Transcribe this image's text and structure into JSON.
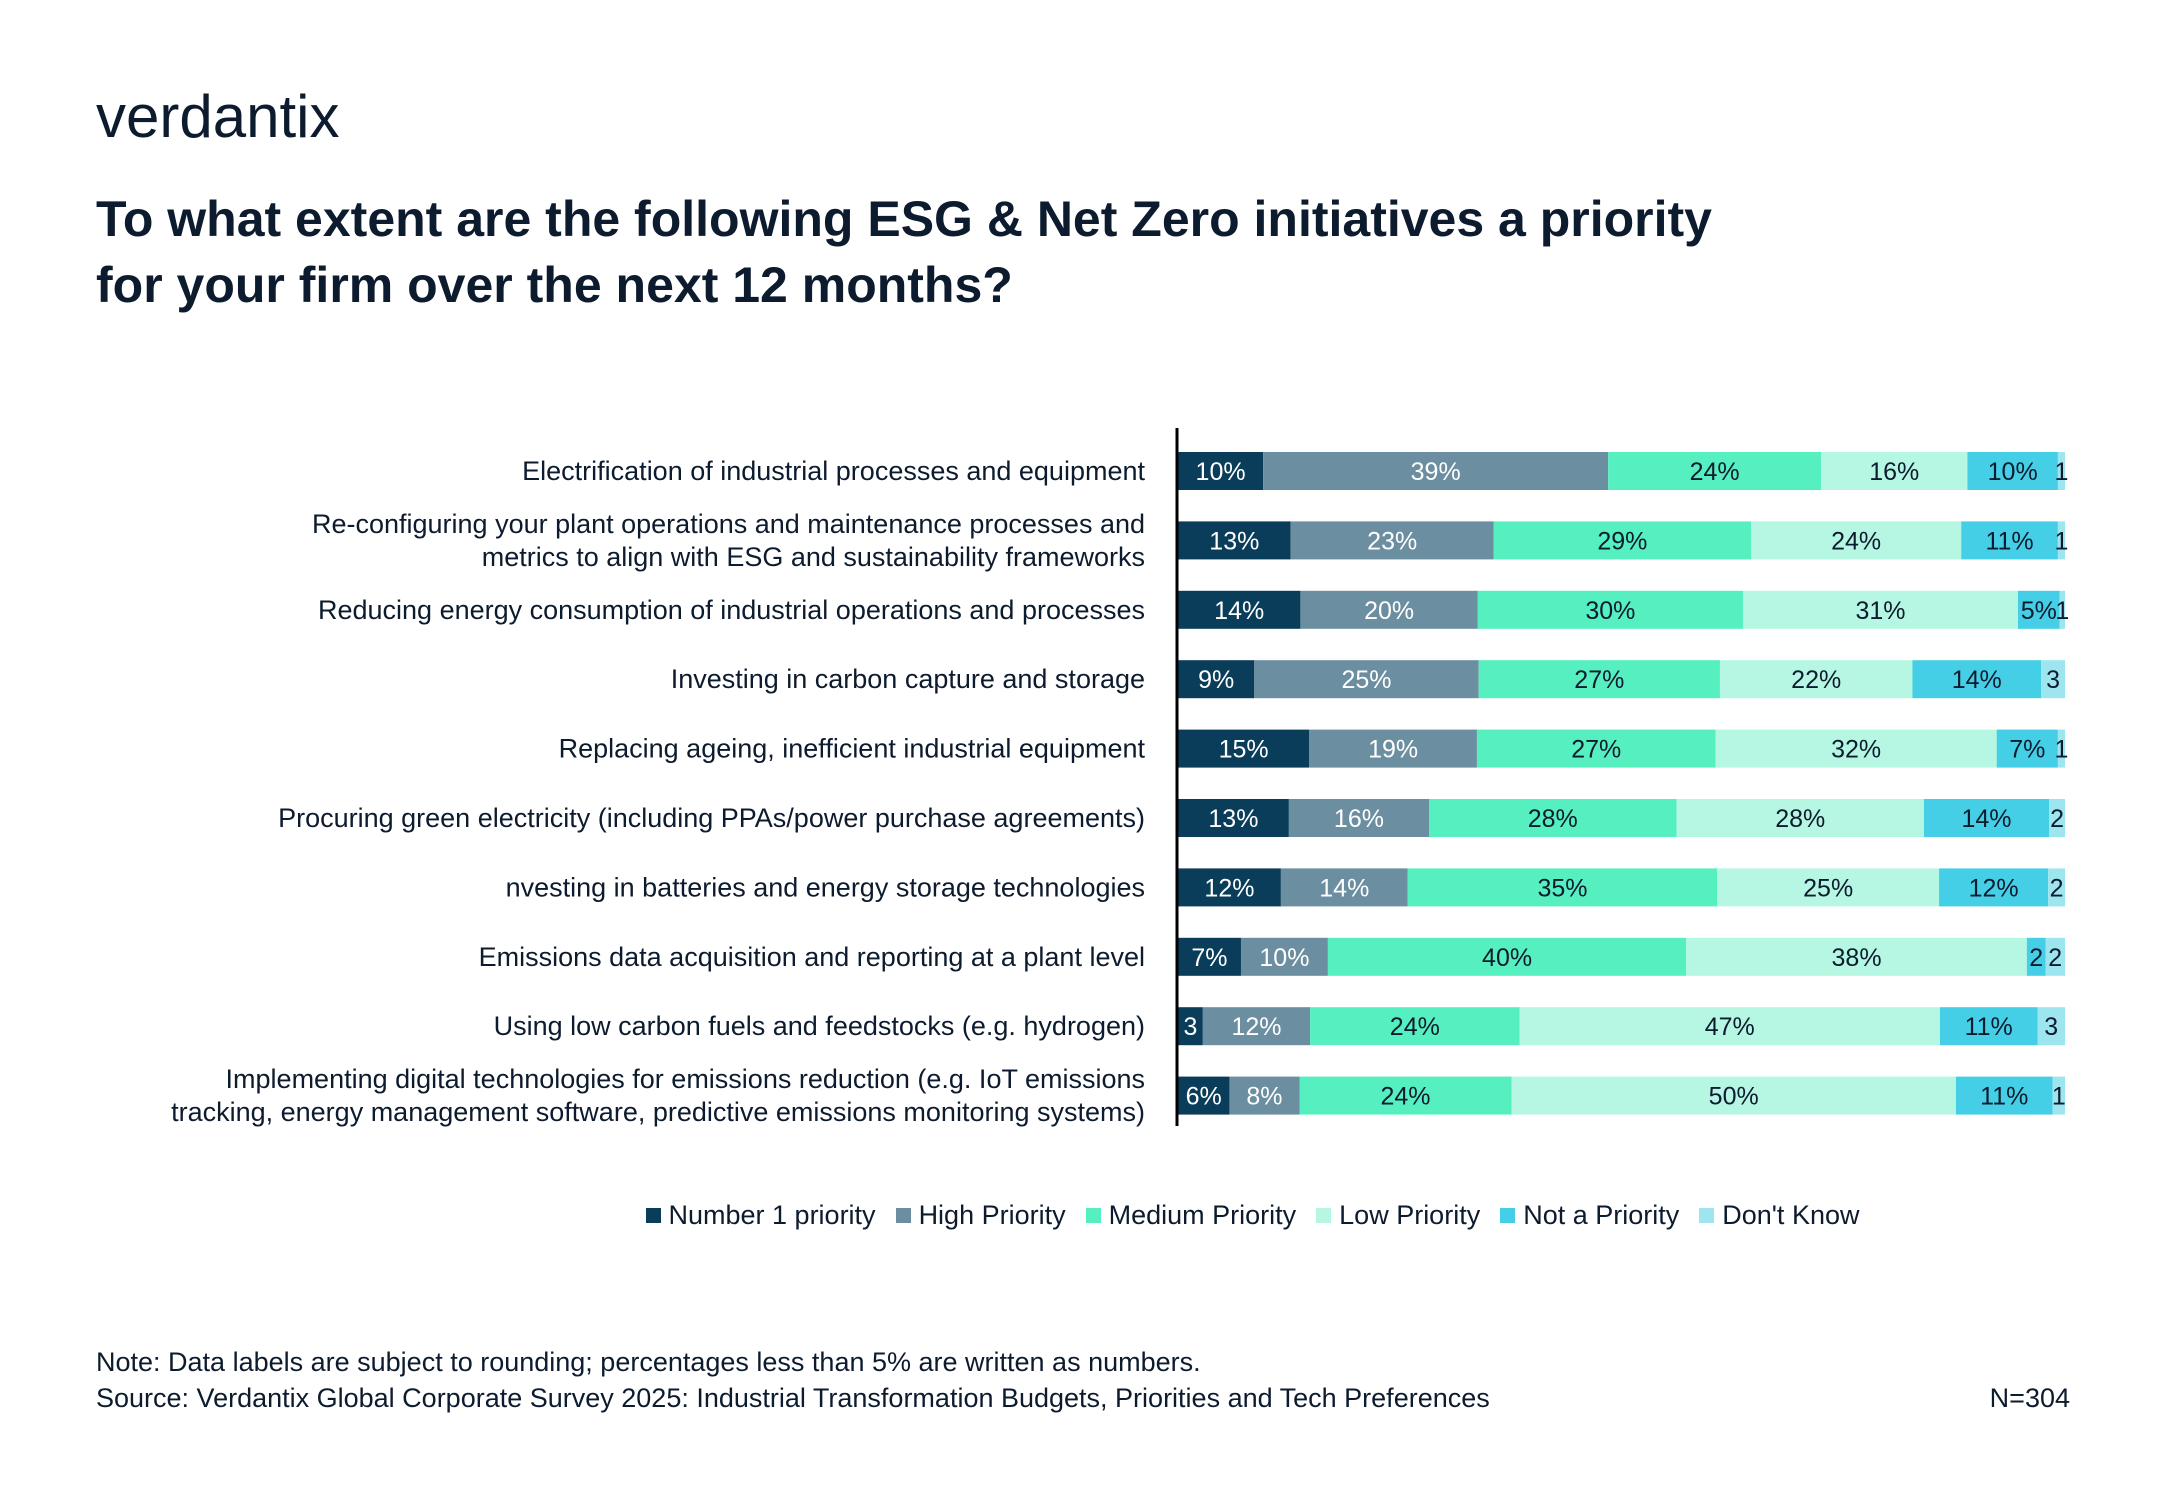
{
  "brand": "verdantix",
  "title_lines": [
    "To what extent are the following ESG & Net Zero initiatives a priority",
    "for your firm over the next 12 months?"
  ],
  "footer": {
    "note": "Note: Data labels are subject to rounding; percentages less than 5% are written as numbers.",
    "source": "Source: Verdantix Global Corporate Survey 2025: Industrial Transformation Budgets, Priorities and Tech Preferences",
    "sample": "N=304"
  },
  "colors": {
    "Number 1 priority": "#0a3d5a",
    "High Priority": "#6b8ea0",
    "Medium Priority": "#55efc0",
    "Low Priority": "#b5f7e2",
    "Not a Priority": "#45cfe6",
    "Don't Know": "#9de6ef"
  },
  "chart_data": {
    "type": "bar",
    "orientation": "horizontal",
    "stacked": true,
    "title": "To what extent are the following ESG & Net Zero initiatives a priority for your firm over the next 12 months?",
    "xlim": [
      0,
      100
    ],
    "legend_position": "bottom",
    "categories": [
      [
        "Electrification of industrial processes and equipment"
      ],
      [
        "Re-configuring your plant operations and maintenance processes and",
        "metrics to align with ESG and sustainability frameworks"
      ],
      [
        "Reducing energy consumption of industrial operations and processes"
      ],
      [
        "Investing in carbon capture and storage"
      ],
      [
        "Replacing ageing, inefficient industrial equipment"
      ],
      [
        "Procuring green electricity (including PPAs/power purchase agreements)"
      ],
      [
        "nvesting in batteries and energy storage technologies"
      ],
      [
        "Emissions data acquisition and reporting at a plant level"
      ],
      [
        "Using low carbon fuels and feedstocks (e.g. hydrogen)"
      ],
      [
        "Implementing digital technologies for emissions reduction (e.g. IoT emissions",
        "tracking, energy management software, predictive emissions monitoring systems)"
      ]
    ],
    "series": [
      {
        "name": "Number 1 priority",
        "values": [
          9.6,
          12.7,
          13.8,
          8.6,
          14.8,
          12.5,
          11.6,
          7.1,
          2.8,
          5.8
        ],
        "labels": [
          "10%",
          "13%",
          "14%",
          "9%",
          "15%",
          "13%",
          "12%",
          "7%",
          "3",
          "6%"
        ]
      },
      {
        "name": "High Priority",
        "values": [
          38.9,
          22.9,
          20.0,
          25.3,
          18.9,
          15.8,
          14.3,
          9.8,
          12.1,
          7.9
        ],
        "labels": [
          "39%",
          "23%",
          "20%",
          "25%",
          "19%",
          "16%",
          "14%",
          "10%",
          "12%",
          "8%"
        ]
      },
      {
        "name": "Medium Priority",
        "values": [
          24.0,
          29.0,
          29.9,
          27.2,
          26.9,
          27.9,
          34.9,
          40.4,
          23.6,
          23.9
        ],
        "labels": [
          "24%",
          "29%",
          "30%",
          "27%",
          "27%",
          "28%",
          "35%",
          "40%",
          "24%",
          "24%"
        ]
      },
      {
        "name": "Low Priority",
        "values": [
          16.5,
          23.7,
          31.0,
          21.7,
          31.7,
          27.9,
          25.0,
          38.4,
          47.4,
          50.1
        ],
        "labels": [
          "16%",
          "24%",
          "31%",
          "22%",
          "32%",
          "28%",
          "25%",
          "38%",
          "47%",
          "50%"
        ]
      },
      {
        "name": "Not a Priority",
        "values": [
          10.2,
          10.9,
          4.7,
          14.5,
          6.9,
          14.1,
          12.3,
          2.1,
          11.0,
          10.9
        ],
        "labels": [
          "10%",
          "11%",
          "5%",
          "14%",
          "7%",
          "14%",
          "12%",
          "2",
          "11%",
          "11%"
        ]
      },
      {
        "name": "Don't Know",
        "values": [
          0.8,
          0.8,
          0.6,
          2.7,
          0.8,
          1.8,
          1.9,
          2.2,
          3.1,
          1.4
        ],
        "labels": [
          "1",
          "1",
          "1",
          "3",
          "1",
          "2",
          "2",
          "2",
          "3",
          "1"
        ]
      }
    ]
  }
}
